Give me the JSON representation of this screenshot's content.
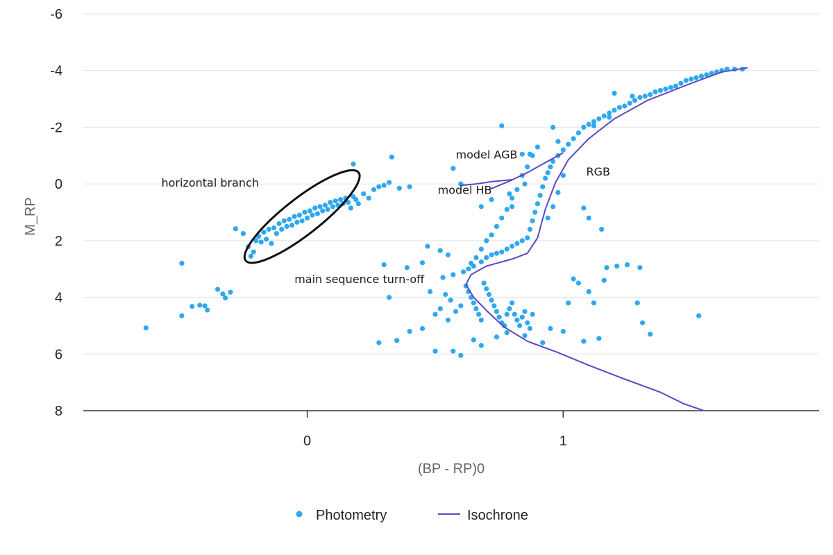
{
  "chart_data": {
    "type": "scatter",
    "xlabel": "(BP - RP)0",
    "ylabel": "M_RP",
    "xlim": [
      -0.875,
      2.0
    ],
    "ylim": [
      -6,
      8
    ],
    "y_inverted": true,
    "x_ticks": [
      0,
      1
    ],
    "y_ticks": [
      -6,
      -4,
      -2,
      0,
      2,
      4,
      6,
      8
    ],
    "y_tick_labels": [
      "-6",
      "-4",
      "-2",
      "0",
      "2",
      "4",
      "6",
      "8"
    ],
    "x_tick_labels": [
      "0",
      "1"
    ],
    "grid": "horizontal",
    "legend_position": "bottom",
    "series": [
      {
        "name": "Photometry",
        "kind": "points",
        "color": "#2fa8f0",
        "points": [
          [
            -0.63,
            5.08
          ],
          [
            -0.49,
            4.65
          ],
          [
            -0.49,
            2.8
          ],
          [
            -0.45,
            4.32
          ],
          [
            -0.42,
            4.28
          ],
          [
            -0.4,
            4.3
          ],
          [
            -0.39,
            4.45
          ],
          [
            -0.35,
            3.72
          ],
          [
            -0.33,
            3.88
          ],
          [
            -0.32,
            4.02
          ],
          [
            -0.3,
            3.82
          ],
          [
            -0.28,
            1.58
          ],
          [
            -0.25,
            1.75
          ],
          [
            -0.23,
            2.22
          ],
          [
            -0.22,
            2.55
          ],
          [
            -0.21,
            2.4
          ],
          [
            -0.2,
            2.0
          ],
          [
            -0.19,
            1.85
          ],
          [
            -0.18,
            2.05
          ],
          [
            -0.17,
            1.7
          ],
          [
            -0.16,
            1.95
          ],
          [
            -0.15,
            1.6
          ],
          [
            -0.14,
            2.1
          ],
          [
            -0.13,
            1.55
          ],
          [
            -0.12,
            1.75
          ],
          [
            -0.11,
            1.4
          ],
          [
            -0.1,
            1.6
          ],
          [
            -0.09,
            1.3
          ],
          [
            -0.08,
            1.5
          ],
          [
            -0.07,
            1.25
          ],
          [
            -0.06,
            1.45
          ],
          [
            -0.05,
            1.15
          ],
          [
            -0.04,
            1.35
          ],
          [
            -0.03,
            1.1
          ],
          [
            -0.02,
            1.3
          ],
          [
            -0.01,
            1.0
          ],
          [
            0.0,
            1.2
          ],
          [
            0.01,
            0.95
          ],
          [
            0.02,
            1.1
          ],
          [
            0.03,
            0.85
          ],
          [
            0.04,
            1.05
          ],
          [
            0.05,
            0.8
          ],
          [
            0.06,
            0.95
          ],
          [
            0.07,
            0.75
          ],
          [
            0.08,
            0.9
          ],
          [
            0.09,
            0.65
          ],
          [
            0.1,
            0.8
          ],
          [
            0.11,
            0.6
          ],
          [
            0.12,
            0.75
          ],
          [
            0.13,
            0.55
          ],
          [
            0.14,
            0.7
          ],
          [
            0.15,
            0.5
          ],
          [
            0.16,
            0.65
          ],
          [
            0.17,
            0.85
          ],
          [
            0.18,
            0.45
          ],
          [
            0.19,
            0.55
          ],
          [
            0.2,
            0.7
          ],
          [
            0.22,
            0.35
          ],
          [
            0.24,
            0.5
          ],
          [
            0.26,
            0.2
          ],
          [
            0.28,
            0.1
          ],
          [
            0.3,
            0.05
          ],
          [
            0.32,
            -0.05
          ],
          [
            0.36,
            0.15
          ],
          [
            0.4,
            0.1
          ],
          [
            0.18,
            -0.7
          ],
          [
            0.33,
            -0.95
          ],
          [
            0.57,
            -0.55
          ],
          [
            0.6,
            0.0
          ],
          [
            0.68,
            0.8
          ],
          [
            0.76,
            -2.05
          ],
          [
            0.72,
            0.55
          ],
          [
            0.79,
            0.35
          ],
          [
            0.8,
            0.8
          ],
          [
            0.84,
            -1.05
          ],
          [
            0.87,
            -1.05
          ],
          [
            0.85,
            0.0
          ],
          [
            0.3,
            2.85
          ],
          [
            0.39,
            2.95
          ],
          [
            0.45,
            2.78
          ],
          [
            0.47,
            2.2
          ],
          [
            0.52,
            2.35
          ],
          [
            0.55,
            2.5
          ],
          [
            0.32,
            4.0
          ],
          [
            0.28,
            5.6
          ],
          [
            0.35,
            5.52
          ],
          [
            0.4,
            5.2
          ],
          [
            0.45,
            5.1
          ],
          [
            0.5,
            5.9
          ],
          [
            0.57,
            5.9
          ],
          [
            0.6,
            6.05
          ],
          [
            0.65,
            5.5
          ],
          [
            0.68,
            5.7
          ],
          [
            0.74,
            5.4
          ],
          [
            0.78,
            5.25
          ],
          [
            0.85,
            5.35
          ],
          [
            0.92,
            5.6
          ],
          [
            0.95,
            5.1
          ],
          [
            1.0,
            5.2
          ],
          [
            1.08,
            5.55
          ],
          [
            1.14,
            5.45
          ],
          [
            1.04,
            3.35
          ],
          [
            1.02,
            4.2
          ],
          [
            1.06,
            3.5
          ],
          [
            1.1,
            3.8
          ],
          [
            1.12,
            4.2
          ],
          [
            1.16,
            3.4
          ],
          [
            1.17,
            2.95
          ],
          [
            1.21,
            2.9
          ],
          [
            1.25,
            2.85
          ],
          [
            1.3,
            2.95
          ],
          [
            1.29,
            4.2
          ],
          [
            1.31,
            4.9
          ],
          [
            1.34,
            5.3
          ],
          [
            1.53,
            4.65
          ],
          [
            1.15,
            1.6
          ],
          [
            1.1,
            1.2
          ],
          [
            1.08,
            0.85
          ],
          [
            0.62,
            3.6
          ],
          [
            0.63,
            3.8
          ],
          [
            0.64,
            4.0
          ],
          [
            0.65,
            4.2
          ],
          [
            0.66,
            4.4
          ],
          [
            0.67,
            4.6
          ],
          [
            0.68,
            4.8
          ],
          [
            0.69,
            3.5
          ],
          [
            0.7,
            3.7
          ],
          [
            0.71,
            3.9
          ],
          [
            0.72,
            4.1
          ],
          [
            0.73,
            4.3
          ],
          [
            0.74,
            4.5
          ],
          [
            0.75,
            4.7
          ],
          [
            0.76,
            4.9
          ],
          [
            0.77,
            5.0
          ],
          [
            0.78,
            4.6
          ],
          [
            0.79,
            4.4
          ],
          [
            0.8,
            4.2
          ],
          [
            0.81,
            4.6
          ],
          [
            0.82,
            4.8
          ],
          [
            0.83,
            5.0
          ],
          [
            0.84,
            4.7
          ],
          [
            0.85,
            4.5
          ],
          [
            0.86,
            4.9
          ],
          [
            0.87,
            5.1
          ],
          [
            0.88,
            4.6
          ],
          [
            0.6,
            4.3
          ],
          [
            0.58,
            4.5
          ],
          [
            0.56,
            4.1
          ],
          [
            0.55,
            4.8
          ],
          [
            0.54,
            3.9
          ],
          [
            0.52,
            4.4
          ],
          [
            0.5,
            4.6
          ],
          [
            0.48,
            3.8
          ],
          [
            0.53,
            3.3
          ],
          [
            0.57,
            3.2
          ],
          [
            0.61,
            3.1
          ],
          [
            0.63,
            3.0
          ],
          [
            0.65,
            2.9
          ],
          [
            0.68,
            2.75
          ],
          [
            0.7,
            2.6
          ],
          [
            0.72,
            2.5
          ],
          [
            0.74,
            2.45
          ],
          [
            0.76,
            2.4
          ],
          [
            0.78,
            2.3
          ],
          [
            0.8,
            2.2
          ],
          [
            0.82,
            2.1
          ],
          [
            0.84,
            2.0
          ],
          [
            0.86,
            1.9
          ],
          [
            0.87,
            1.6
          ],
          [
            0.88,
            1.3
          ],
          [
            0.89,
            1.0
          ],
          [
            0.9,
            0.7
          ],
          [
            0.91,
            0.4
          ],
          [
            0.92,
            0.1
          ],
          [
            0.93,
            -0.2
          ],
          [
            0.94,
            -0.4
          ],
          [
            0.95,
            -0.6
          ],
          [
            0.96,
            -0.8
          ],
          [
            0.98,
            -1.0
          ],
          [
            1.0,
            -1.2
          ],
          [
            1.02,
            -1.4
          ],
          [
            1.04,
            -1.6
          ],
          [
            1.06,
            -1.8
          ],
          [
            1.08,
            -2.0
          ],
          [
            1.1,
            -2.1
          ],
          [
            1.12,
            -2.2
          ],
          [
            1.14,
            -2.3
          ],
          [
            1.16,
            -2.4
          ],
          [
            1.18,
            -2.5
          ],
          [
            1.2,
            -2.6
          ],
          [
            1.22,
            -2.7
          ],
          [
            1.24,
            -2.75
          ],
          [
            1.26,
            -2.85
          ],
          [
            1.28,
            -2.95
          ],
          [
            1.3,
            -3.05
          ],
          [
            1.32,
            -3.1
          ],
          [
            1.34,
            -3.15
          ],
          [
            1.36,
            -3.25
          ],
          [
            1.38,
            -3.3
          ],
          [
            1.4,
            -3.35
          ],
          [
            1.42,
            -3.4
          ],
          [
            1.44,
            -3.45
          ],
          [
            1.46,
            -3.55
          ],
          [
            1.48,
            -3.65
          ],
          [
            1.5,
            -3.7
          ],
          [
            1.52,
            -3.75
          ],
          [
            1.54,
            -3.8
          ],
          [
            1.56,
            -3.85
          ],
          [
            1.58,
            -3.9
          ],
          [
            1.6,
            -3.95
          ],
          [
            1.62,
            -4.0
          ],
          [
            1.64,
            -4.05
          ],
          [
            1.67,
            -4.05
          ],
          [
            1.7,
            -4.05
          ],
          [
            1.2,
            -3.2
          ],
          [
            1.27,
            -3.1
          ],
          [
            1.18,
            -2.35
          ],
          [
            1.12,
            -2.05
          ],
          [
            0.96,
            -2.0
          ],
          [
            0.98,
            -1.5
          ],
          [
            0.9,
            -1.3
          ],
          [
            0.88,
            -1.0
          ],
          [
            0.86,
            -0.6
          ],
          [
            0.84,
            -0.3
          ],
          [
            0.82,
            0.2
          ],
          [
            0.8,
            0.5
          ],
          [
            0.78,
            0.9
          ],
          [
            0.76,
            1.2
          ],
          [
            0.74,
            1.5
          ],
          [
            0.72,
            1.8
          ],
          [
            0.7,
            2.0
          ],
          [
            0.68,
            2.3
          ],
          [
            0.66,
            2.6
          ],
          [
            0.64,
            2.8
          ],
          [
            0.94,
            1.2
          ],
          [
            0.96,
            0.8
          ],
          [
            0.98,
            0.3
          ],
          [
            1.0,
            -0.3
          ]
        ]
      },
      {
        "name": "Isochrone",
        "kind": "line",
        "color": "#5b48c4",
        "points": [
          [
            1.55,
            8.0
          ],
          [
            1.47,
            7.75
          ],
          [
            1.38,
            7.35
          ],
          [
            1.23,
            6.85
          ],
          [
            1.1,
            6.4
          ],
          [
            0.98,
            5.95
          ],
          [
            0.86,
            5.55
          ],
          [
            0.77,
            5.05
          ],
          [
            0.71,
            4.55
          ],
          [
            0.65,
            4.0
          ],
          [
            0.62,
            3.55
          ],
          [
            0.64,
            3.2
          ],
          [
            0.7,
            2.9
          ],
          [
            0.8,
            2.65
          ],
          [
            0.86,
            2.45
          ],
          [
            0.9,
            1.9
          ],
          [
            0.93,
            0.9
          ],
          [
            0.97,
            -0.05
          ],
          [
            1.02,
            -0.85
          ],
          [
            1.1,
            -1.6
          ],
          [
            1.2,
            -2.3
          ],
          [
            1.33,
            -2.95
          ],
          [
            1.5,
            -3.55
          ],
          [
            1.62,
            -3.95
          ],
          [
            1.72,
            -4.1
          ]
        ]
      },
      {
        "name": "model AGB",
        "kind": "line",
        "color": "#5b48c4",
        "points": [
          [
            0.71,
            0.2
          ],
          [
            0.79,
            -0.1
          ],
          [
            0.86,
            -0.4
          ],
          [
            0.92,
            -0.7
          ],
          [
            1.0,
            -1.1
          ]
        ]
      },
      {
        "name": "model HB",
        "kind": "line",
        "color": "#5b48c4",
        "points": [
          [
            0.6,
            0.05
          ],
          [
            0.66,
            0.0
          ],
          [
            0.72,
            -0.08
          ],
          [
            0.8,
            -0.15
          ]
        ]
      }
    ],
    "annotations": [
      {
        "text": "horizontal branch",
        "x": -0.57,
        "y": 0.1
      },
      {
        "text": "model AGB",
        "x": 0.58,
        "y": -0.9
      },
      {
        "text": "model HB",
        "x": 0.51,
        "y": 0.35
      },
      {
        "text": "RGB",
        "x": 1.09,
        "y": -0.3
      },
      {
        "text": "main sequence turn-off",
        "x": -0.05,
        "y": 3.5
      }
    ],
    "highlight_ellipse": {
      "cx": -0.02,
      "cy": 1.15,
      "rx": 0.28,
      "ry": 0.64
    }
  },
  "legend": {
    "items": [
      {
        "label": "Photometry",
        "marker": "dot",
        "color": "#2fa8f0"
      },
      {
        "label": "Isochrone",
        "marker": "line",
        "color": "#5b48c4"
      }
    ]
  }
}
